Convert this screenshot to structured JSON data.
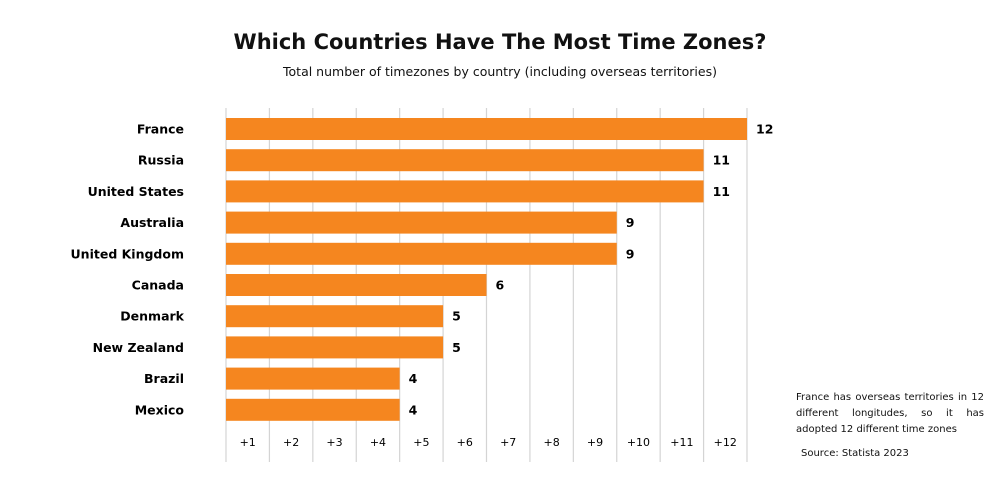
{
  "chart_data": {
    "type": "bar",
    "orientation": "horizontal",
    "title": "Which Countries Have The Most Time Zones?",
    "subtitle": "Total number of timezones by country (including overseas territories)",
    "categories": [
      "France",
      "Russia",
      "United States",
      "Australia",
      "United Kingdom",
      "Canada",
      "Denmark",
      "New Zealand",
      "Brazil",
      "Mexico"
    ],
    "values": [
      12,
      11,
      11,
      9,
      9,
      6,
      5,
      5,
      4,
      4
    ],
    "xlabel": "",
    "ylabel": "",
    "xlim": [
      0,
      12
    ],
    "tick_labels": [
      "+1",
      "+2",
      "+3",
      "+4",
      "+5",
      "+6",
      "+7",
      "+8",
      "+9",
      "+10",
      "+11",
      "+12"
    ],
    "grid": true,
    "bar_color": "#F5861F",
    "annotation": "France has overseas territories in 12 different longitudes, so it has adopted 12 different time zones",
    "source": "Source: Statista 2023"
  }
}
